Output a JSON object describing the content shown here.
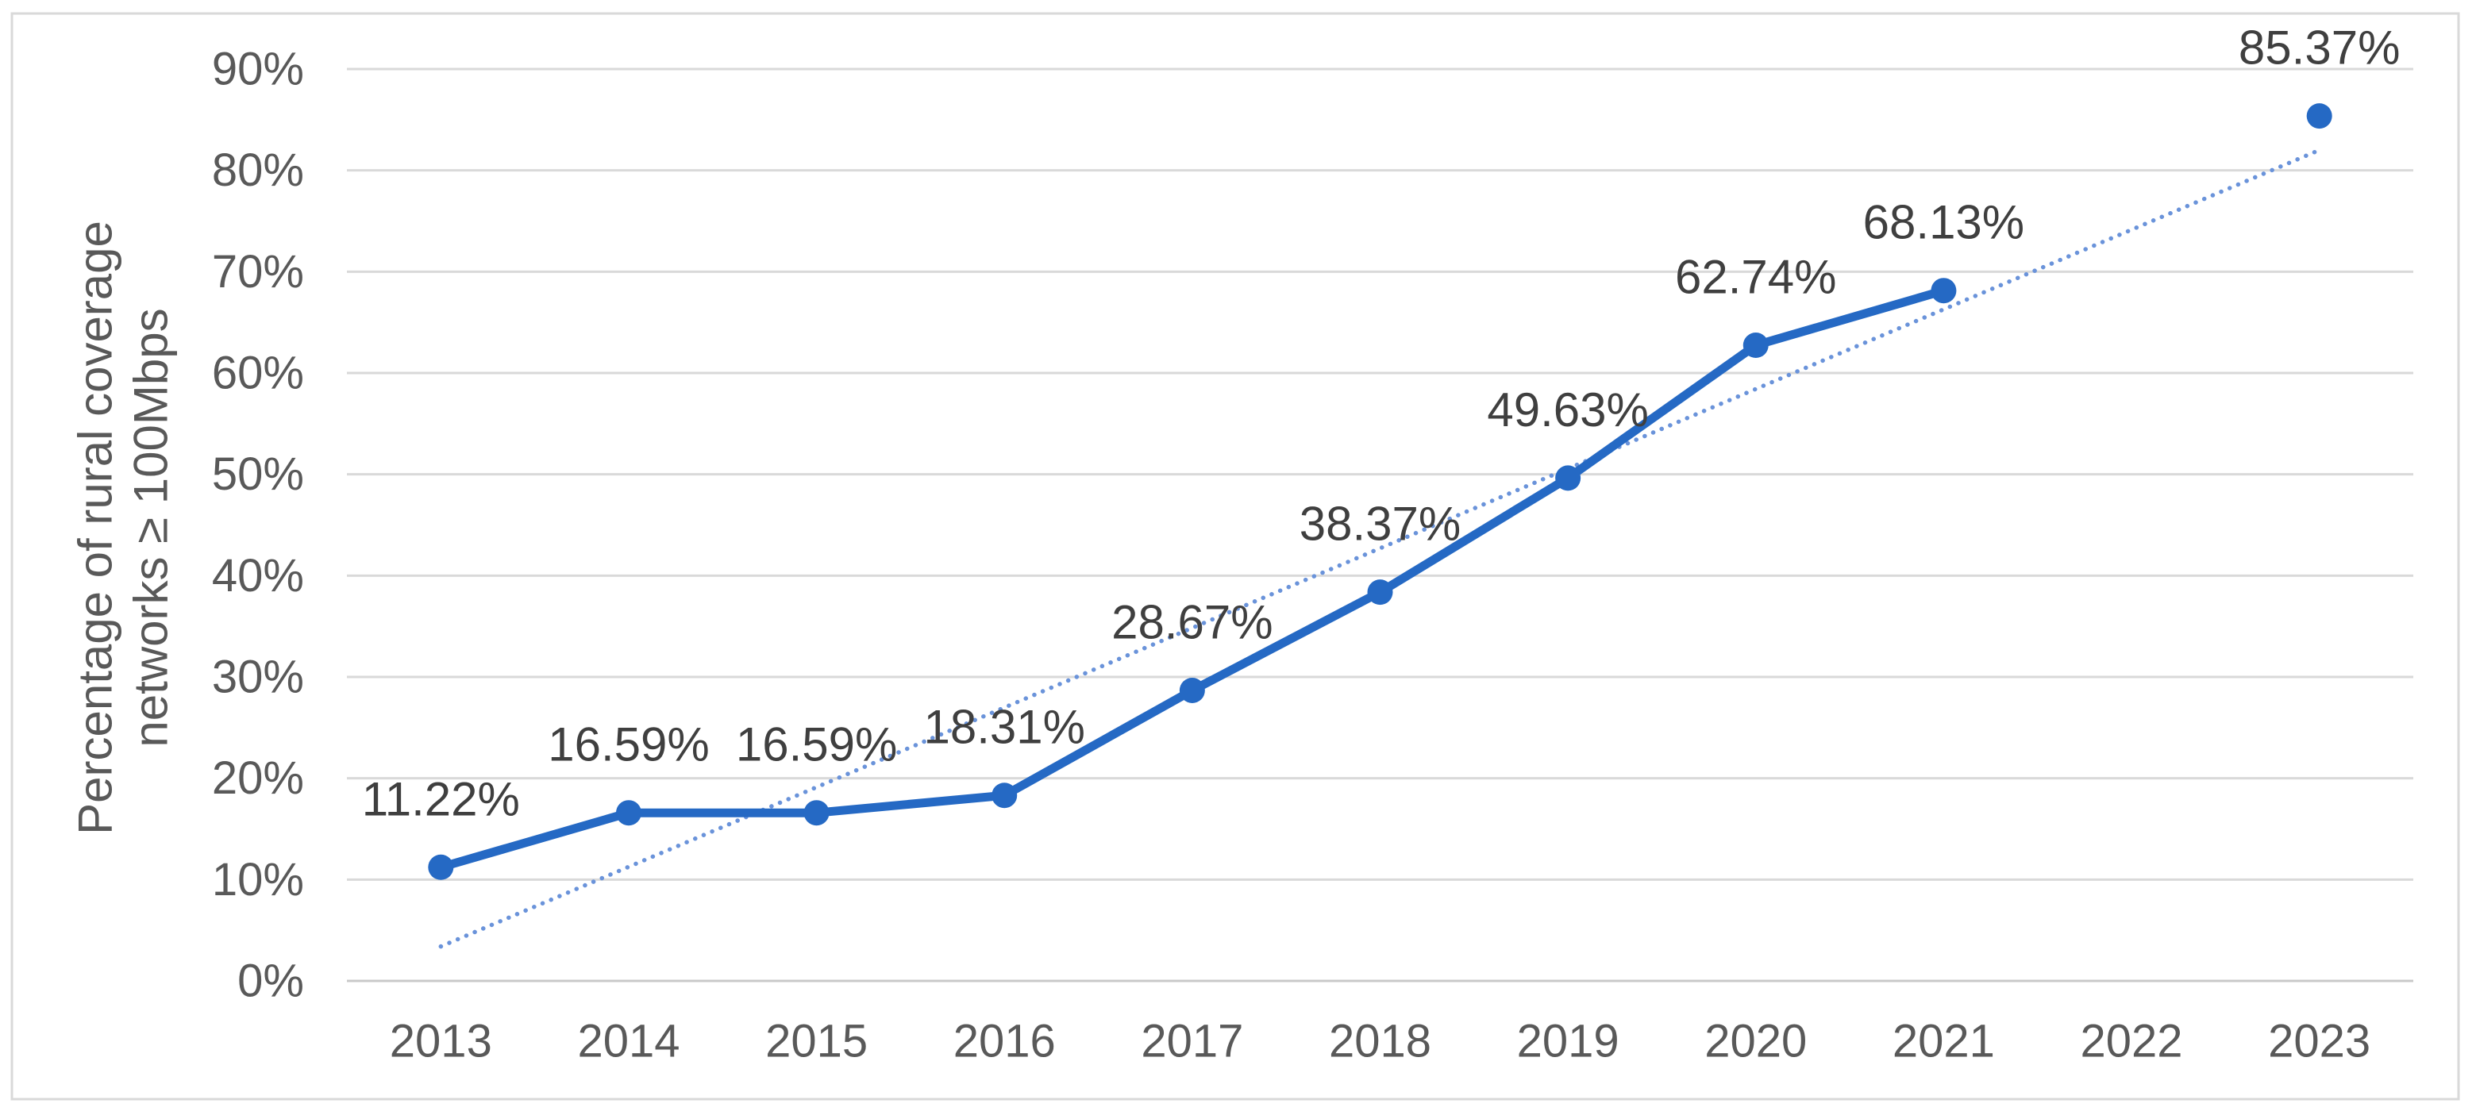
{
  "chart_data": {
    "type": "line",
    "title": "",
    "xlabel": "",
    "ylabel_lines": [
      "Percentage of rural coverage",
      "networks ≥ 100Mbps"
    ],
    "categories": [
      "2013",
      "2014",
      "2015",
      "2016",
      "2017",
      "2018",
      "2019",
      "2020",
      "2021",
      "2022",
      "2023"
    ],
    "series": [
      {
        "values": [
          11.22,
          16.59,
          16.59,
          18.31,
          28.67,
          38.37,
          49.63,
          62.74,
          68.13,
          null,
          85.37
        ],
        "labels": [
          "11.22%",
          "16.59%",
          "16.59%",
          "18.31%",
          "28.67%",
          "38.37%",
          "49.63%",
          "62.74%",
          "68.13%",
          null,
          "85.37%"
        ],
        "markers": true
      }
    ],
    "trendline": {
      "style": "dotted",
      "shape": "linear",
      "start_category": "2013",
      "end_category": "2023",
      "start_value": 3.4,
      "end_value": 82.0
    },
    "y_ticks": [
      "0%",
      "10%",
      "20%",
      "30%",
      "40%",
      "50%",
      "60%",
      "70%",
      "80%",
      "90%"
    ],
    "ylim": [
      0,
      90
    ],
    "y_tick_step": 10,
    "grid": "horizontal",
    "legend": "none",
    "colors": {
      "series": "#2569c4",
      "trendline": "#6a93da",
      "gridline": "#d9d9d9",
      "axis_line": "#c9c9c9",
      "tick_text": "#595959",
      "axis_title_text": "#595959",
      "data_label_text": "#3f3f3f",
      "border": "#d9d9d9",
      "background": "#ffffff"
    }
  }
}
